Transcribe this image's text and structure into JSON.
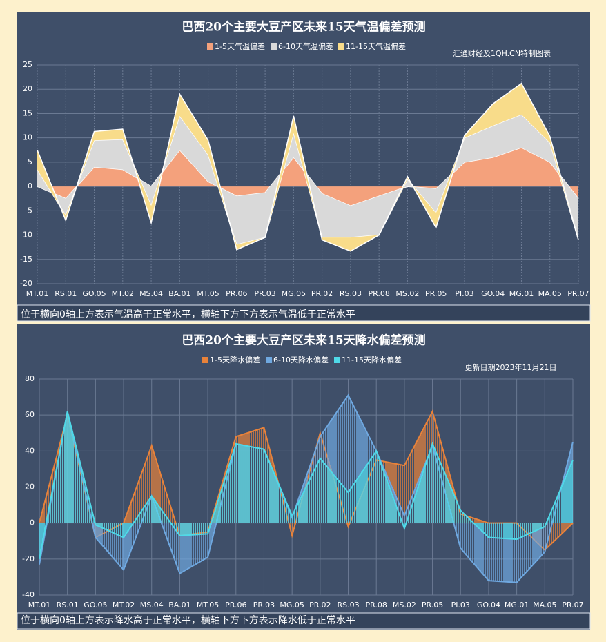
{
  "chart_data": [
    {
      "type": "area",
      "stacked": true,
      "grid": true,
      "title": "巴西20个主要大豆产区未来15天气温偏差预测",
      "annotation": "汇通财经及1QH.CN特制图表",
      "caption": "位于横向0轴上方表示气温高于正常水平，横轴下方下方表示气温低于正常水平",
      "categories": [
        "MT.01",
        "RS.01",
        "GO.05",
        "MT.02",
        "MS.04",
        "BA.01",
        "MT.05",
        "PR.06",
        "PR.03",
        "MG.05",
        "PR.02",
        "RS.03",
        "PR.08",
        "MS.02",
        "PR.05",
        "PI.03",
        "GO.04",
        "MG.01",
        "MA.05",
        "PR.07"
      ],
      "ylim": [
        -20,
        25
      ],
      "yticks": [
        -20,
        -15,
        -10,
        -5,
        0,
        5,
        10,
        15,
        20,
        25
      ],
      "series": [
        {
          "name": "1-5天气温偏差",
          "color": "#f4a17c",
          "values": [
            0,
            -2.5,
            4,
            3.5,
            0,
            7.5,
            1,
            -2,
            -1.3,
            6,
            -1.5,
            -4,
            -2,
            0,
            -0.5,
            5,
            6,
            8,
            5,
            -2.5
          ]
        },
        {
          "name": "6-10天气温偏差",
          "color": "#d9d9d9",
          "values": [
            3.5,
            -3.5,
            5.5,
            6.2,
            -4,
            7,
            5.5,
            -10,
            -9.2,
            5,
            -9,
            -6.5,
            -8,
            1.5,
            -5,
            5,
            6.5,
            6.8,
            4,
            -8.5
          ]
        },
        {
          "name": "11-15天气温偏差",
          "color": "#f8dc8a",
          "values": [
            4,
            -1,
            1.8,
            2.1,
            -3.5,
            4.5,
            3,
            -1,
            0,
            3.5,
            -0.5,
            -2.8,
            0,
            0.5,
            -3,
            0.5,
            4.5,
            6.4,
            1.3,
            0
          ]
        }
      ]
    },
    {
      "type": "area",
      "stacked": false,
      "grid": true,
      "title": "巴西20个主要大豆产区未来15天降水偏差预测",
      "annotation": "更新日期2023年11月21日",
      "caption": "位于横向0轴上方表示降水高于正常水平，横轴下方下方表示降水低于正常水平",
      "categories": [
        "MT.01",
        "RS.01",
        "GO.05",
        "MT.02",
        "MS.04",
        "BA.01",
        "MT.05",
        "PR.06",
        "PR.03",
        "MG.05",
        "PR.02",
        "RS.03",
        "PR.08",
        "MS.02",
        "PR.05",
        "PI.03",
        "GO.04",
        "MG.01",
        "MA.05",
        "PR.07"
      ],
      "ylim": [
        -40,
        80
      ],
      "yticks": [
        -40,
        -20,
        0,
        20,
        40,
        60,
        80
      ],
      "series": [
        {
          "name": "1-5天降水偏差",
          "color": "#e8823a",
          "values": [
            0,
            60,
            -8,
            0,
            43,
            -7,
            -5,
            48,
            53,
            -7,
            50,
            -2,
            35,
            32,
            62,
            5,
            0,
            0,
            -15,
            0
          ]
        },
        {
          "name": "6-10天降水偏差",
          "color": "#6fa8e0",
          "values": [
            -23,
            62,
            -8,
            -26,
            15,
            -28,
            -19,
            44,
            41,
            3,
            48,
            71,
            40,
            4,
            43,
            -14,
            -32,
            -33,
            -16,
            45
          ]
        },
        {
          "name": "11-15天降水偏差",
          "color": "#4fd9e8",
          "values": [
            -20,
            62,
            -1,
            -8,
            15,
            -7,
            -6,
            44,
            41,
            4,
            36,
            17,
            40,
            -3,
            44,
            7,
            -8,
            -9,
            -2,
            35
          ]
        }
      ]
    }
  ]
}
